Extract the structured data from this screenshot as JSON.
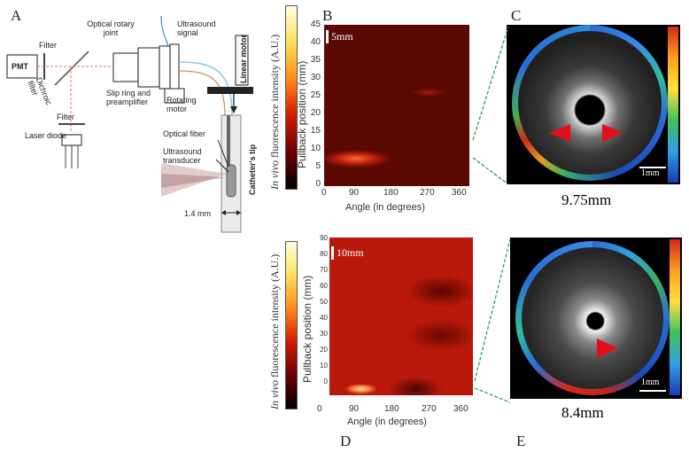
{
  "panels": {
    "a": "A",
    "b": "B",
    "c": "C",
    "d": "D",
    "e": "E"
  },
  "schematic": {
    "pmt": "PMT",
    "filter_top": "Filter",
    "dichroic": "Dichroic filter",
    "filter_bottom": "Filter",
    "laser": "Laser diode",
    "rotary_joint": "Optical rotary joint",
    "ultrasound_signal": "Ultrasound signal",
    "slip_ring": "Slip ring and preamplifier",
    "rotating_motor": "Rotating motor",
    "linear_motor": "Linear motor",
    "optical_fiber": "Optical fiber",
    "transducer": "Ultrasound transducer",
    "catheter_tip": "Catheter's tip",
    "dimension": "1.4 mm"
  },
  "heatmap_top": {
    "colorbar_label_italic": "In vivo",
    "colorbar_label": "fluorescence intensity (A.U.)",
    "ylabel": "Pullback position (mm)",
    "xlabel": "Angle (in degrees)",
    "badge": "5mm",
    "yticks": [
      "45",
      "40",
      "35",
      "30",
      "25",
      "20",
      "15",
      "10",
      "5",
      "0"
    ],
    "xticks": [
      "0",
      "90",
      "180",
      "270",
      "360"
    ]
  },
  "heatmap_bottom": {
    "colorbar_label_italic": "In vivo",
    "colorbar_label": "fluorescence intensity (A.U.)",
    "ylabel": "Pullback position (mm)",
    "xlabel": "Angle (in degrees)",
    "badge": "10mm",
    "yticks": [
      "90",
      "80",
      "70",
      "60",
      "50",
      "40",
      "30",
      "20",
      "10",
      "0"
    ],
    "xticks": [
      "0",
      "90",
      "180",
      "270",
      "360"
    ]
  },
  "ivus_top": {
    "scale": "1mm",
    "caption": "9.75mm"
  },
  "ivus_bottom": {
    "scale": "1mm",
    "caption": "8.4mm"
  },
  "colors": {
    "heat_dark": "#3a0000",
    "heat_red": "#b01208",
    "heat_bright": "#ff5a1a",
    "arrow_red": "#e0101a",
    "guide_green": "#1a9a5a"
  }
}
